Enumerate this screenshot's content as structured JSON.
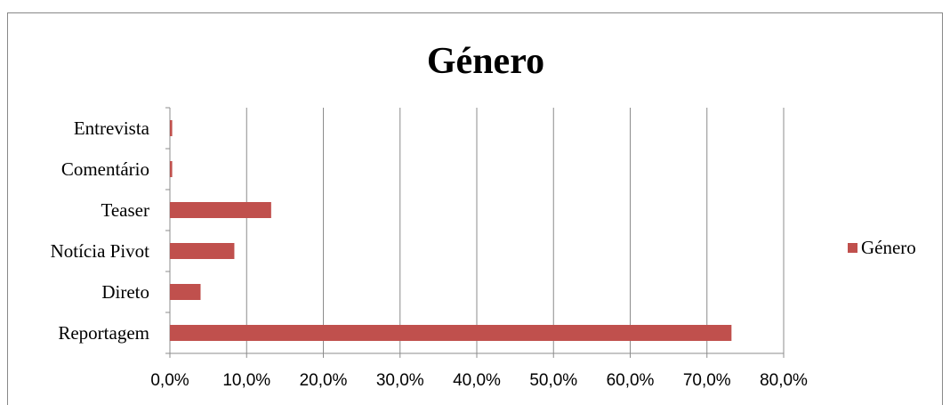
{
  "chart_data": {
    "type": "bar",
    "orientation": "horizontal",
    "title": "Género",
    "categories": [
      "Entrevista",
      "Comentário",
      "Teaser",
      "Notícia Pivot",
      "Direto",
      "Reportagem"
    ],
    "series": [
      {
        "name": "Género",
        "values": [
          0.3,
          0.3,
          13.2,
          8.4,
          4.0,
          73.2
        ],
        "color": "#C0504D"
      }
    ],
    "xlim": [
      0,
      80
    ],
    "x_ticks": [
      "0,0%",
      "10,0%",
      "20,0%",
      "30,0%",
      "40,0%",
      "50,0%",
      "60,0%",
      "70,0%",
      "80,0%"
    ],
    "grid": "vertical",
    "legend_position": "right"
  }
}
